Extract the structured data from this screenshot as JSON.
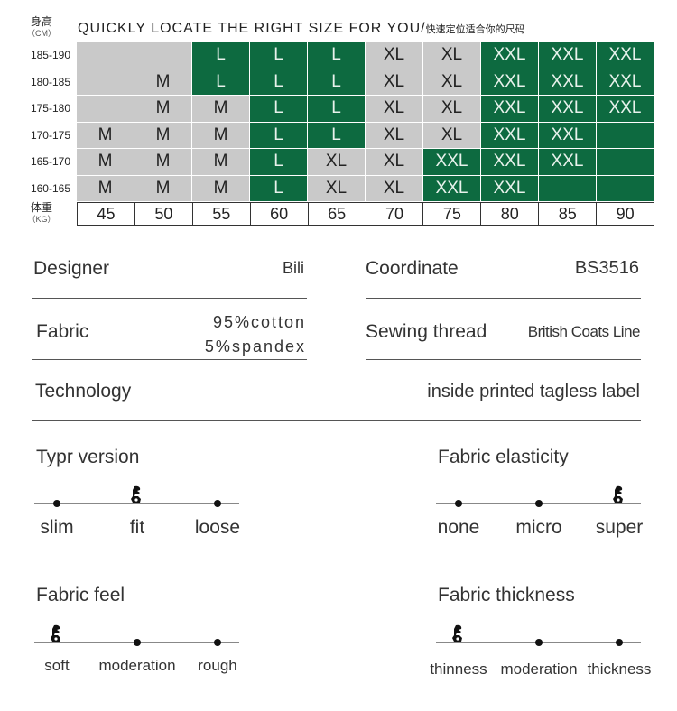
{
  "header": {
    "height_cn": "身高",
    "height_unit": "（CM）",
    "title": "QUICKLY LOCATE THE RIGHT SIZE FOR YOU/",
    "title_cn": "快速定位适合你的尺码",
    "weight_cn": "体重",
    "weight_unit": "（KG）"
  },
  "colors": {
    "green": "#0d6a40",
    "gray": "#c9c9c9"
  },
  "size_chart": {
    "heights": [
      "185-190",
      "180-185",
      "175-180",
      "170-175",
      "165-170",
      "160-165"
    ],
    "weights": [
      "45",
      "50",
      "55",
      "60",
      "65",
      "70",
      "75",
      "80",
      "85",
      "90"
    ],
    "rows": [
      {
        "sizes": [
          "",
          "",
          "L",
          "L",
          "L",
          "XL",
          "XL",
          "XXL",
          "XXL",
          "XXL"
        ],
        "tones": [
          "k",
          "k",
          "g",
          "g",
          "g",
          "k",
          "k",
          "g",
          "g",
          "g"
        ]
      },
      {
        "sizes": [
          "",
          "M",
          "L",
          "L",
          "L",
          "XL",
          "XL",
          "XXL",
          "XXL",
          "XXL"
        ],
        "tones": [
          "k",
          "k",
          "g",
          "g",
          "g",
          "k",
          "k",
          "g",
          "g",
          "g"
        ]
      },
      {
        "sizes": [
          "",
          "M",
          "M",
          "L",
          "L",
          "XL",
          "XL",
          "XXL",
          "XXL",
          "XXL"
        ],
        "tones": [
          "k",
          "k",
          "k",
          "g",
          "g",
          "k",
          "k",
          "g",
          "g",
          "g"
        ]
      },
      {
        "sizes": [
          "M",
          "M",
          "M",
          "L",
          "L",
          "XL",
          "XL",
          "XXL",
          "XXL",
          ""
        ],
        "tones": [
          "k",
          "k",
          "k",
          "g",
          "g",
          "k",
          "k",
          "g",
          "g",
          "g"
        ]
      },
      {
        "sizes": [
          "M",
          "M",
          "M",
          "L",
          "XL",
          "XL",
          "XXL",
          "XXL",
          "XXL",
          ""
        ],
        "tones": [
          "k",
          "k",
          "k",
          "g",
          "k",
          "k",
          "g",
          "g",
          "g",
          "g"
        ]
      },
      {
        "sizes": [
          "M",
          "M",
          "M",
          "L",
          "XL",
          "XL",
          "XXL",
          "XXL",
          "",
          ""
        ],
        "tones": [
          "k",
          "k",
          "k",
          "g",
          "k",
          "k",
          "g",
          "g",
          "g",
          "g"
        ]
      }
    ]
  },
  "specs": {
    "designer_label": "Designer",
    "designer": "Bili",
    "coordinate_label": "Coordinate",
    "coordinate": "BS3516",
    "fabric_label": "Fabric",
    "fabric_1": "95%cotton",
    "fabric_2": "5%spandex",
    "thread_label": "Sewing thread",
    "thread": "British Coats Line",
    "technology_label": "Technology",
    "technology": "inside printed tagless label"
  },
  "scales": {
    "type": {
      "title": "Typr version",
      "options": [
        "slim",
        "fit",
        "loose"
      ],
      "selected": "fit"
    },
    "elasticity": {
      "title": "Fabric elasticity",
      "options": [
        "none",
        "micro",
        "super"
      ],
      "selected": "super"
    },
    "feel": {
      "title": "Fabric feel",
      "options": [
        "soft",
        "moderation",
        "rough"
      ],
      "selected": "soft"
    },
    "thickness": {
      "title": "Fabric thickness",
      "options": [
        "thinness",
        "moderation",
        "thickness"
      ],
      "selected": "thinness"
    }
  }
}
